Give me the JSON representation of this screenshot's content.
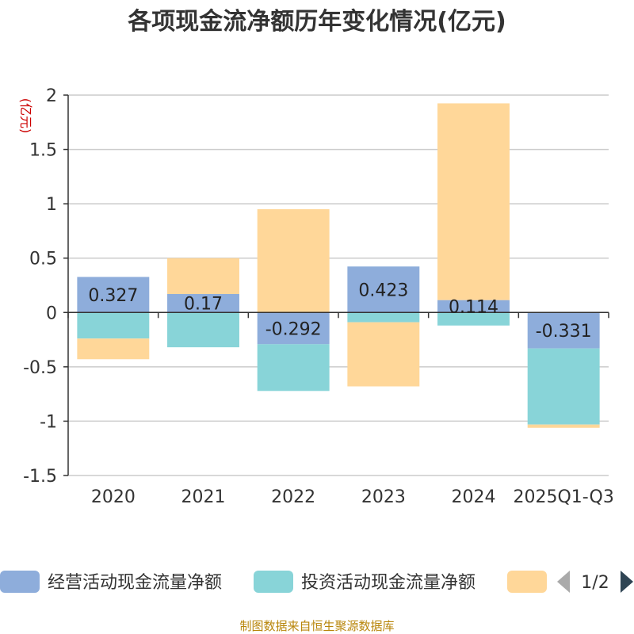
{
  "chart_data": {
    "type": "bar",
    "stacked": true,
    "title": "各项现金流净额历年变化情况(亿元)",
    "unit_label": "(亿元)",
    "categories": [
      "2020",
      "2021",
      "2022",
      "2023",
      "2024",
      "2025Q1-Q3"
    ],
    "ylim": [
      -1.5,
      2
    ],
    "yticks": [
      2,
      1.5,
      1,
      0.5,
      0,
      -0.5,
      -1,
      -1.5
    ],
    "ytick_labels": [
      "2",
      "1.5",
      "1",
      "0.5",
      "0",
      "-0.5",
      "-1",
      "-1.5"
    ],
    "grid": true,
    "series": [
      {
        "name": "经营活动现金流量净额",
        "color": "#8eaddb",
        "values": [
          0.327,
          0.17,
          -0.292,
          0.423,
          0.114,
          -0.331
        ],
        "labels": [
          "0.327",
          "0.17",
          "-0.292",
          "0.423",
          "0.114",
          "-0.331"
        ]
      },
      {
        "name": "投资活动现金流量净额",
        "color": "#88d4d8",
        "values": [
          -0.24,
          -0.32,
          -0.43,
          -0.09,
          -0.12,
          -0.7
        ]
      },
      {
        "name": "",
        "color": "#ffd799",
        "values": [
          -0.19,
          0.33,
          0.95,
          -0.59,
          1.81,
          -0.03
        ]
      }
    ],
    "legend": {
      "position": "bottom",
      "page": "1/2"
    }
  },
  "source_text": "制图数据来自恒生聚源数据库",
  "colors": {
    "axis": "#333333",
    "grid": "#cccccc",
    "pager_active": "#2f4554",
    "pager_inactive": "#aaaaaa"
  }
}
